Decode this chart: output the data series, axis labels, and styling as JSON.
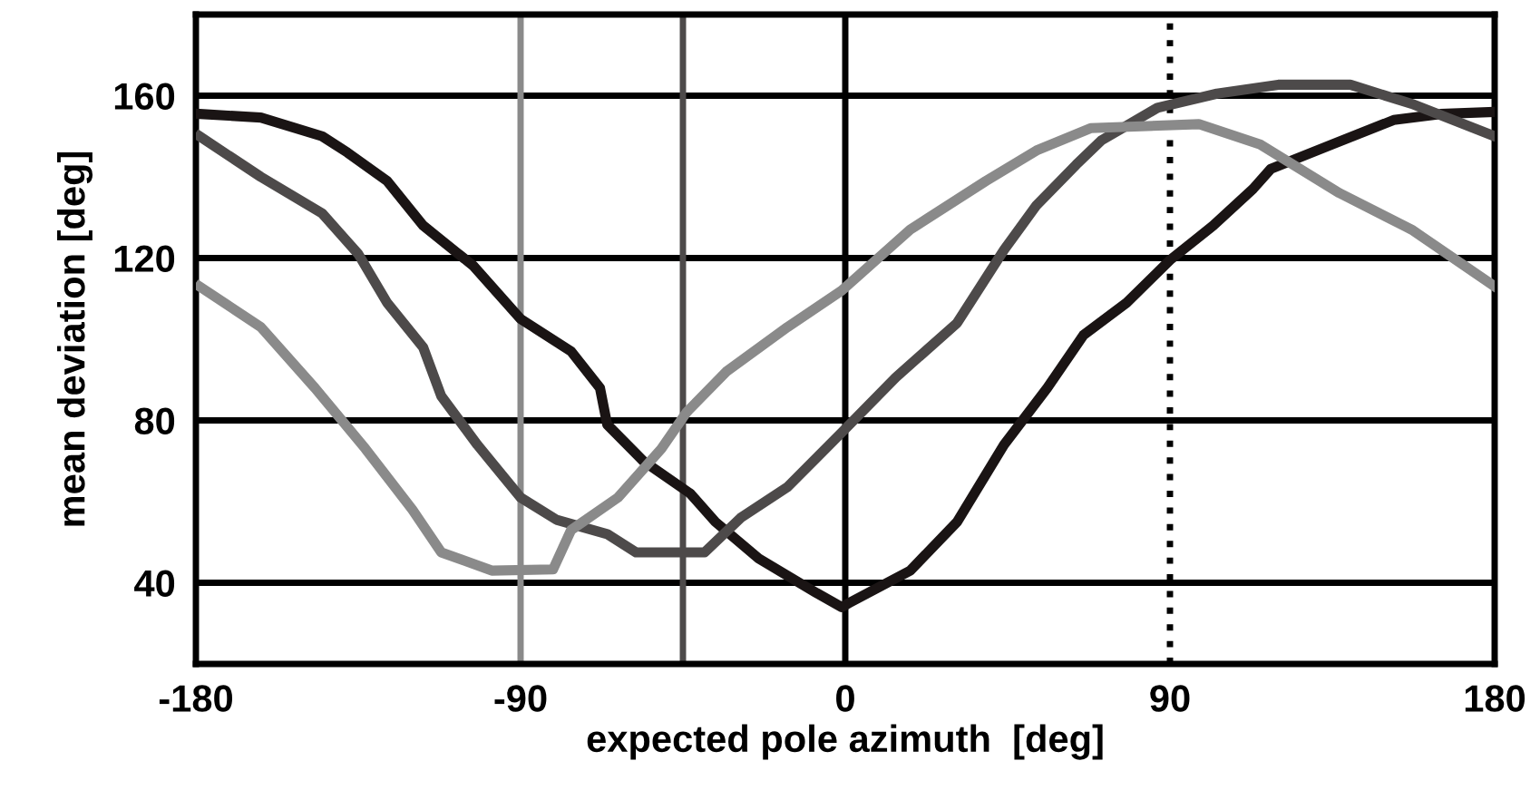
{
  "chart_data": {
    "type": "line",
    "xlabel": "expected pole azimuth  [deg]",
    "ylabel": "mean deviation [deg]",
    "xlim": [
      -180,
      180
    ],
    "ylim": [
      20,
      180
    ],
    "xticks": [
      -180,
      -90,
      0,
      90,
      180
    ],
    "yticks": [
      40,
      80,
      120,
      160
    ],
    "grid": "y",
    "line_style": "solid",
    "series": [
      {
        "color": "#1a1414",
        "x": [
          -179,
          -162,
          -145,
          -138,
          -127,
          -117,
          -103,
          -90,
          -76,
          -68,
          -66,
          -56,
          -43,
          -36,
          -24,
          -8,
          -1,
          1,
          18,
          31,
          44,
          56,
          66,
          78,
          90,
          102,
          113,
          118,
          135,
          152,
          165,
          180
        ],
        "values": [
          155.5,
          154.6,
          150,
          146,
          139,
          128,
          118,
          105,
          97,
          88,
          79,
          70,
          62,
          55,
          46,
          37.5,
          34,
          35,
          43,
          55,
          74,
          88,
          101,
          109,
          119.5,
          128,
          137,
          142,
          148,
          154,
          155.5,
          156
        ]
      },
      {
        "color": "#4d4a4a",
        "x": [
          -179,
          -162,
          -145,
          -135,
          -127,
          -117,
          -112,
          -102,
          -90,
          -80,
          -66,
          -58,
          -39,
          -29,
          -16,
          -1,
          14,
          31,
          44,
          53,
          64,
          71,
          86.5,
          103,
          120,
          140,
          157,
          180
        ],
        "values": [
          150,
          140,
          131,
          121,
          109,
          98,
          86,
          74,
          61,
          55.5,
          52,
          47.5,
          47.5,
          56,
          63.6,
          77,
          90.6,
          104,
          122,
          133,
          143,
          149,
          157,
          160.5,
          162.7,
          162.7,
          158,
          150
        ]
      },
      {
        "color": "#8a8a8a",
        "x": [
          -179,
          -162,
          -147,
          -133,
          -120,
          -112,
          -98,
          -81,
          -76,
          -63,
          -51,
          -44,
          -33,
          -16,
          -1,
          18,
          39,
          53,
          68,
          98,
          115,
          137,
          157,
          180
        ],
        "values": [
          113,
          103,
          88,
          73,
          58,
          47.5,
          43,
          43.3,
          53,
          61,
          73,
          82,
          92,
          103,
          112,
          127,
          139,
          146.5,
          152,
          153,
          148,
          136,
          127,
          113
        ]
      }
    ],
    "ref_lines": [
      {
        "axis": "x",
        "value": -90,
        "color": "#8a8a8a",
        "line_style": "solid"
      },
      {
        "axis": "x",
        "value": -45,
        "color": "#4d4a4a",
        "line_style": "solid"
      },
      {
        "axis": "x",
        "value": 0,
        "color": "#000000",
        "line_style": "solid"
      },
      {
        "axis": "x",
        "value": 90,
        "color": "#000000",
        "line_style": "dotted"
      }
    ]
  }
}
